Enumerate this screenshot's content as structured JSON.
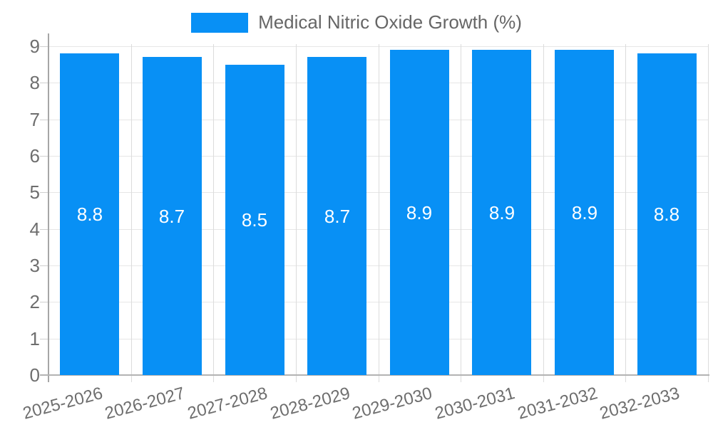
{
  "chart_data": {
    "type": "bar",
    "title": "Medical Nitric Oxide Growth (%)",
    "categories": [
      "2025-2026",
      "2026-2027",
      "2027-2028",
      "2028-2029",
      "2029-2030",
      "2030-2031",
      "2031-2032",
      "2032-2033"
    ],
    "values": [
      8.8,
      8.7,
      8.5,
      8.7,
      8.9,
      8.9,
      8.9,
      8.8
    ],
    "value_labels": [
      "8.8",
      "8.7",
      "8.5",
      "8.7",
      "8.9",
      "8.9",
      "8.9",
      "8.8"
    ],
    "xlabel": "",
    "ylabel": "",
    "ylim": [
      0,
      9
    ],
    "y_ticks": [
      0,
      1,
      2,
      3,
      4,
      5,
      6,
      7,
      8,
      9
    ],
    "grid": true,
    "legend_position": "top",
    "x_label_rotation_deg": -15,
    "colors": {
      "bar": "#0890F5",
      "bar_label": "#ffffff",
      "legend_text": "#666666",
      "axis_text": "#6e6e6e",
      "gridline": "#e6e6e6",
      "vgridline": "#dcdcdc",
      "axis_line": "#a6a6a6"
    }
  }
}
